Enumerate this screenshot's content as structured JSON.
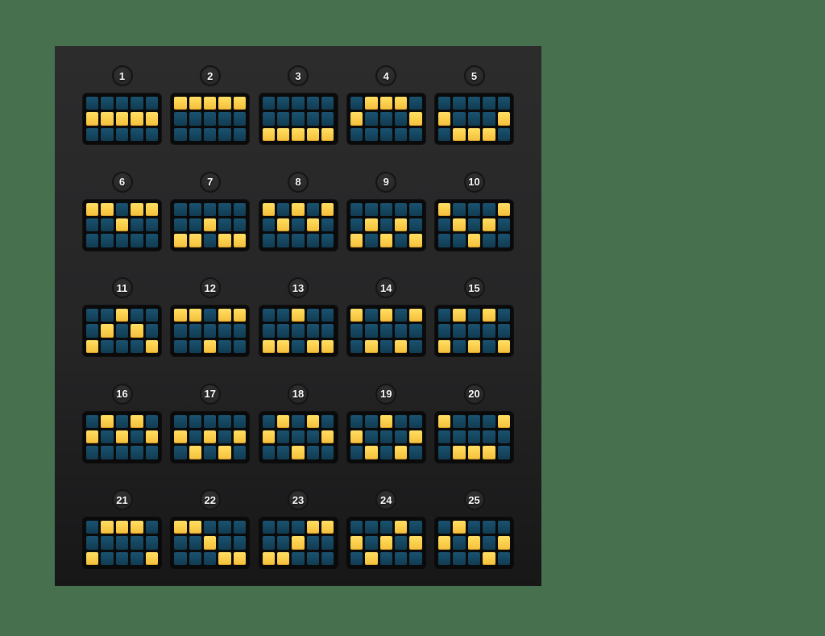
{
  "screen": {
    "name": "slot-paylines-info",
    "per_row": 5
  },
  "colors": {
    "background": "#47704f",
    "panel_top": "#2c2c2d",
    "panel_bottom": "#171718",
    "tile_bg": "#0a0a0b",
    "cell_on": "#fcd14d",
    "cell_off": "#15465f",
    "badge_ring": "#141414",
    "badge_text": "#ffffff"
  },
  "grid": {
    "columns": 5,
    "rows": 3
  },
  "paylines": [
    {
      "number": "1",
      "pattern": [
        [
          0,
          0,
          0,
          0,
          0
        ],
        [
          1,
          1,
          1,
          1,
          1
        ],
        [
          0,
          0,
          0,
          0,
          0
        ]
      ]
    },
    {
      "number": "2",
      "pattern": [
        [
          1,
          1,
          1,
          1,
          1
        ],
        [
          0,
          0,
          0,
          0,
          0
        ],
        [
          0,
          0,
          0,
          0,
          0
        ]
      ]
    },
    {
      "number": "3",
      "pattern": [
        [
          0,
          0,
          0,
          0,
          0
        ],
        [
          0,
          0,
          0,
          0,
          0
        ],
        [
          1,
          1,
          1,
          1,
          1
        ]
      ]
    },
    {
      "number": "4",
      "pattern": [
        [
          0,
          1,
          1,
          1,
          0
        ],
        [
          1,
          0,
          0,
          0,
          1
        ],
        [
          0,
          0,
          0,
          0,
          0
        ]
      ]
    },
    {
      "number": "5",
      "pattern": [
        [
          0,
          0,
          0,
          0,
          0
        ],
        [
          1,
          0,
          0,
          0,
          1
        ],
        [
          0,
          1,
          1,
          1,
          0
        ]
      ]
    },
    {
      "number": "6",
      "pattern": [
        [
          1,
          1,
          0,
          1,
          1
        ],
        [
          0,
          0,
          1,
          0,
          0
        ],
        [
          0,
          0,
          0,
          0,
          0
        ]
      ]
    },
    {
      "number": "7",
      "pattern": [
        [
          0,
          0,
          0,
          0,
          0
        ],
        [
          0,
          0,
          1,
          0,
          0
        ],
        [
          1,
          1,
          0,
          1,
          1
        ]
      ]
    },
    {
      "number": "8",
      "pattern": [
        [
          1,
          0,
          1,
          0,
          1
        ],
        [
          0,
          1,
          0,
          1,
          0
        ],
        [
          0,
          0,
          0,
          0,
          0
        ]
      ]
    },
    {
      "number": "9",
      "pattern": [
        [
          0,
          0,
          0,
          0,
          0
        ],
        [
          0,
          1,
          0,
          1,
          0
        ],
        [
          1,
          0,
          1,
          0,
          1
        ]
      ]
    },
    {
      "number": "10",
      "pattern": [
        [
          1,
          0,
          0,
          0,
          1
        ],
        [
          0,
          1,
          0,
          1,
          0
        ],
        [
          0,
          0,
          1,
          0,
          0
        ]
      ]
    },
    {
      "number": "11",
      "pattern": [
        [
          0,
          0,
          1,
          0,
          0
        ],
        [
          0,
          1,
          0,
          1,
          0
        ],
        [
          1,
          0,
          0,
          0,
          1
        ]
      ]
    },
    {
      "number": "12",
      "pattern": [
        [
          1,
          1,
          0,
          1,
          1
        ],
        [
          0,
          0,
          0,
          0,
          0
        ],
        [
          0,
          0,
          1,
          0,
          0
        ]
      ]
    },
    {
      "number": "13",
      "pattern": [
        [
          0,
          0,
          1,
          0,
          0
        ],
        [
          0,
          0,
          0,
          0,
          0
        ],
        [
          1,
          1,
          0,
          1,
          1
        ]
      ]
    },
    {
      "number": "14",
      "pattern": [
        [
          1,
          0,
          1,
          0,
          1
        ],
        [
          0,
          0,
          0,
          0,
          0
        ],
        [
          0,
          1,
          0,
          1,
          0
        ]
      ]
    },
    {
      "number": "15",
      "pattern": [
        [
          0,
          1,
          0,
          1,
          0
        ],
        [
          0,
          0,
          0,
          0,
          0
        ],
        [
          1,
          0,
          1,
          0,
          1
        ]
      ]
    },
    {
      "number": "16",
      "pattern": [
        [
          0,
          1,
          0,
          1,
          0
        ],
        [
          1,
          0,
          1,
          0,
          1
        ],
        [
          0,
          0,
          0,
          0,
          0
        ]
      ]
    },
    {
      "number": "17",
      "pattern": [
        [
          0,
          0,
          0,
          0,
          0
        ],
        [
          1,
          0,
          1,
          0,
          1
        ],
        [
          0,
          1,
          0,
          1,
          0
        ]
      ]
    },
    {
      "number": "18",
      "pattern": [
        [
          0,
          1,
          0,
          1,
          0
        ],
        [
          1,
          0,
          0,
          0,
          1
        ],
        [
          0,
          0,
          1,
          0,
          0
        ]
      ]
    },
    {
      "number": "19",
      "pattern": [
        [
          0,
          0,
          1,
          0,
          0
        ],
        [
          1,
          0,
          0,
          0,
          1
        ],
        [
          0,
          1,
          0,
          1,
          0
        ]
      ]
    },
    {
      "number": "20",
      "pattern": [
        [
          1,
          0,
          0,
          0,
          1
        ],
        [
          0,
          0,
          0,
          0,
          0
        ],
        [
          0,
          1,
          1,
          1,
          0
        ]
      ]
    },
    {
      "number": "21",
      "pattern": [
        [
          0,
          1,
          1,
          1,
          0
        ],
        [
          0,
          0,
          0,
          0,
          0
        ],
        [
          1,
          0,
          0,
          0,
          1
        ]
      ]
    },
    {
      "number": "22",
      "pattern": [
        [
          1,
          1,
          0,
          0,
          0
        ],
        [
          0,
          0,
          1,
          0,
          0
        ],
        [
          0,
          0,
          0,
          1,
          1
        ]
      ]
    },
    {
      "number": "23",
      "pattern": [
        [
          0,
          0,
          0,
          1,
          1
        ],
        [
          0,
          0,
          1,
          0,
          0
        ],
        [
          1,
          1,
          0,
          0,
          0
        ]
      ]
    },
    {
      "number": "24",
      "pattern": [
        [
          0,
          0,
          0,
          1,
          0
        ],
        [
          1,
          0,
          1,
          0,
          1
        ],
        [
          0,
          1,
          0,
          0,
          0
        ]
      ]
    },
    {
      "number": "25",
      "pattern": [
        [
          0,
          1,
          0,
          0,
          0
        ],
        [
          1,
          0,
          1,
          0,
          1
        ],
        [
          0,
          0,
          0,
          1,
          0
        ]
      ]
    }
  ]
}
